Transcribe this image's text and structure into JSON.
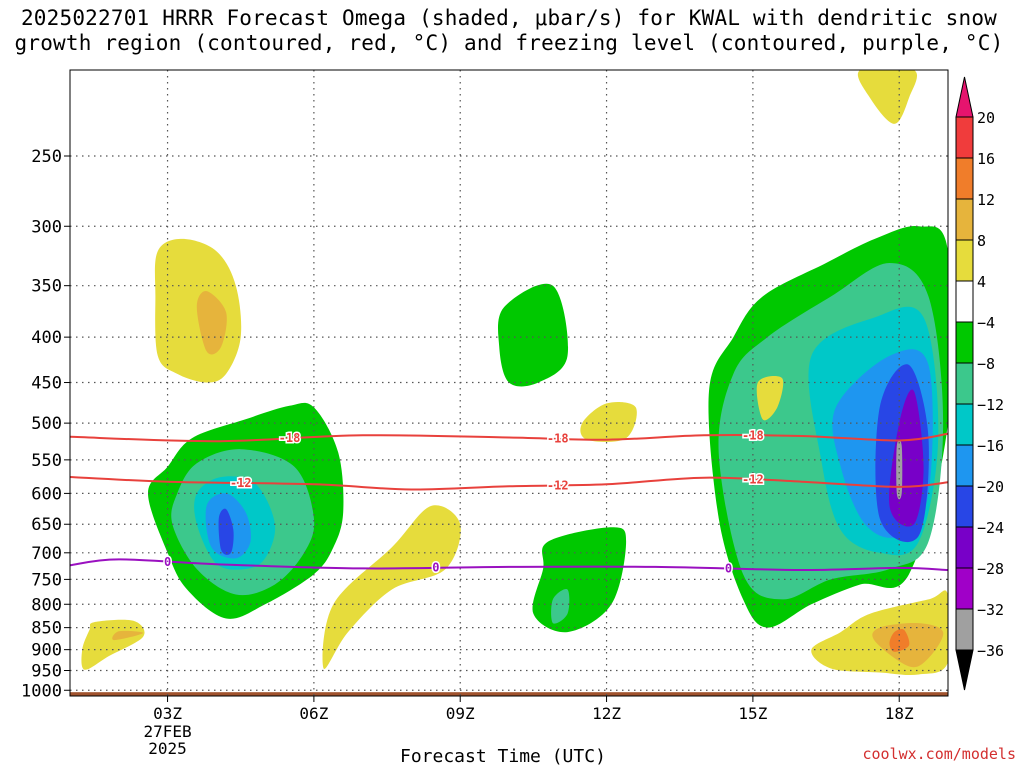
{
  "chart_data": {
    "type": "heatmap",
    "title_line1": "2025022701 HRRR Forecast Omega (shaded, μbar/s) for KWAL with dendritic snow",
    "title_line2": "growth region (contoured, red, °C) and freezing level (contoured, purple, °C)",
    "xlabel": "Forecast Time (UTC)",
    "credit": "coolwx.com/models",
    "x_ticks": [
      "03Z",
      "06Z",
      "09Z",
      "12Z",
      "15Z",
      "18Z"
    ],
    "x_tick_hours": [
      3,
      6,
      9,
      12,
      15,
      18
    ],
    "x_range_hours": [
      1,
      19
    ],
    "date_label": [
      "27FEB",
      "2025"
    ],
    "y_ticks": [
      250,
      300,
      350,
      400,
      450,
      500,
      550,
      600,
      650,
      700,
      750,
      800,
      850,
      900,
      950,
      1000
    ],
    "y_range_hpa": [
      1015,
      200
    ],
    "grid": true,
    "colorbar": {
      "labels": [
        "20",
        "16",
        "12",
        "8",
        "4",
        "−4",
        "−8",
        "−12",
        "−16",
        "−20",
        "−24",
        "−28",
        "−32",
        "−36"
      ],
      "colors": [
        "#f03c3c",
        "#f07d2a",
        "#e6b43c",
        "#e6dc3c",
        "#ffffff",
        "#00c800",
        "#3cc88c",
        "#00c8c8",
        "#1e96f0",
        "#2846e6",
        "#7800c8",
        "#a000c8",
        "#a0a0a0"
      ],
      "top_arrow_color": "#e6146e",
      "bottom_arrow_color": "#000000"
    },
    "contours": [
      {
        "name": "dendritic snow growth (-18°C)",
        "label": "-18",
        "color": "#e8413c",
        "x": [
          1,
          4,
          7,
          10,
          12,
          14,
          16,
          18,
          19
        ],
        "y": [
          518,
          524,
          516,
          519,
          522,
          516,
          517,
          523,
          514
        ]
      },
      {
        "name": "dendritic snow growth (-12°C)",
        "label": "-12",
        "color": "#e8413c",
        "x": [
          1,
          3,
          6,
          8,
          10,
          12,
          14,
          16,
          18,
          19
        ],
        "y": [
          575,
          582,
          586,
          594,
          589,
          586,
          576,
          582,
          590,
          583
        ]
      },
      {
        "name": "freezing level (0°C)",
        "label": "0",
        "color": "#9a10c0",
        "x": [
          1,
          2,
          4,
          7,
          10,
          13,
          16,
          18,
          19
        ],
        "y": [
          723,
          712,
          721,
          729,
          726,
          726,
          732,
          728,
          732
        ]
      }
    ],
    "omega_regions": [
      {
        "level": 4,
        "color": "#e6dc3c",
        "hours": [
          1.4,
          1.5,
          2.3,
          2.5,
          1.8,
          1.3,
          1.25
        ],
        "hpa": [
          855,
          838,
          835,
          870,
          915,
          948,
          900
        ]
      },
      {
        "level": 8,
        "color": "#e6b43c",
        "hours": [
          2.0,
          2.5,
          1.9
        ],
        "hpa": [
          858,
          862,
          878
        ]
      },
      {
        "level": 4,
        "color": "#e6dc3c",
        "hours": [
          2.8,
          3.3,
          4.0,
          4.4,
          4.5,
          4.2,
          3.8,
          3.2,
          2.8,
          2.75
        ],
        "hpa": [
          320,
          310,
          320,
          350,
          400,
          440,
          450,
          440,
          420,
          360
        ]
      },
      {
        "level": 8,
        "color": "#e6b43c",
        "hours": [
          3.6,
          3.8,
          4.2,
          4.1,
          3.8
        ],
        "hpa": [
          370,
          355,
          375,
          410,
          415
        ]
      },
      {
        "level": -4,
        "color": "#00c800",
        "hours": [
          3.0,
          3.5,
          4.6,
          5.5,
          6.0,
          6.5,
          6.6,
          6.4,
          6.0,
          5.0,
          4.2,
          3.4,
          3.0,
          2.6
        ],
        "hpa": [
          560,
          520,
          495,
          478,
          480,
          540,
          630,
          690,
          740,
          800,
          830,
          770,
          700,
          600
        ]
      },
      {
        "level": -8,
        "color": "#3cc88c",
        "hours": [
          3.2,
          3.6,
          4.5,
          5.6,
          6.0,
          5.8,
          5.2,
          4.4,
          3.6,
          3.1
        ],
        "hpa": [
          600,
          555,
          535,
          560,
          640,
          700,
          760,
          780,
          730,
          650
        ]
      },
      {
        "level": -12,
        "color": "#00c8c8",
        "hours": [
          3.6,
          4.1,
          4.8,
          5.2,
          5.0,
          4.6,
          4.0,
          3.6
        ],
        "hpa": [
          600,
          575,
          585,
          650,
          710,
          730,
          720,
          650
        ]
      },
      {
        "level": -16,
        "color": "#1e96f0",
        "hours": [
          3.8,
          4.2,
          4.6,
          4.7,
          4.4,
          3.9
        ],
        "hpa": [
          620,
          600,
          630,
          680,
          710,
          690
        ]
      },
      {
        "level": -20,
        "color": "#2846e6",
        "hours": [
          4.05,
          4.2,
          4.35,
          4.3,
          4.1
        ],
        "hpa": [
          640,
          625,
          660,
          700,
          695
        ]
      },
      {
        "level": 4,
        "color": "#e6dc3c",
        "hours": [
          6.4,
          7.6,
          8.4,
          9.0,
          8.7,
          7.6,
          6.7,
          6.2
        ],
        "hpa": [
          800,
          690,
          620,
          650,
          730,
          770,
          860,
          945
        ]
      },
      {
        "level": -4,
        "color": "#00c800",
        "hours": [
          9.9,
          10.9,
          11.2,
          10.6,
          10.0,
          9.8
        ],
        "hpa": [
          370,
          350,
          420,
          450,
          450,
          410
        ]
      },
      {
        "level": 4,
        "color": "#e6dc3c",
        "hours": [
          12.0,
          12.6,
          12.4,
          11.6,
          11.5
        ],
        "hpa": [
          475,
          480,
          520,
          522,
          500
        ]
      },
      {
        "level": -4,
        "color": "#00c800",
        "hours": [
          10.8,
          12.1,
          12.4,
          12.1,
          11.2,
          10.5,
          10.7
        ],
        "hpa": [
          680,
          655,
          680,
          800,
          860,
          820,
          730
        ]
      },
      {
        "level": -8,
        "color": "#3cc88c",
        "hours": [
          10.9,
          11.2,
          11.2,
          10.9
        ],
        "hpa": [
          790,
          770,
          820,
          840
        ]
      },
      {
        "level": -4,
        "color": "#00c800",
        "hours": [
          15.2,
          16.5,
          17.5,
          18.4,
          19.0,
          19.0,
          18.2,
          17.2,
          16.2,
          15.3,
          14.8,
          14.3,
          14.1,
          14.6
        ],
        "hpa": [
          360,
          330,
          310,
          300,
          320,
          500,
          740,
          760,
          800,
          850,
          790,
          640,
          460,
          400
        ]
      },
      {
        "level": -8,
        "color": "#3cc88c",
        "hours": [
          15.3,
          16.6,
          17.8,
          18.6,
          18.9,
          18.6,
          17.8,
          16.6,
          15.6,
          14.8,
          14.3,
          14.6
        ],
        "hpa": [
          400,
          360,
          330,
          360,
          500,
          680,
          730,
          750,
          790,
          740,
          540,
          440
        ]
      },
      {
        "level": -12,
        "color": "#00c8c8",
        "hours": [
          16.2,
          17.5,
          18.5,
          18.8,
          18.4,
          17.6,
          16.8,
          16.4
        ],
        "hpa": [
          420,
          380,
          380,
          520,
          680,
          700,
          660,
          550
        ]
      },
      {
        "level": -16,
        "color": "#1e96f0",
        "hours": [
          16.7,
          17.8,
          18.6,
          18.6,
          18.0,
          17.3,
          16.8
        ],
        "hpa": [
          480,
          420,
          430,
          600,
          670,
          650,
          560
        ]
      },
      {
        "level": -20,
        "color": "#2846e6",
        "hours": [
          17.6,
          18.2,
          18.6,
          18.4,
          17.6
        ],
        "hpa": [
          480,
          430,
          520,
          670,
          640
        ]
      },
      {
        "level": -24,
        "color": "#7800c8",
        "hours": [
          18.0,
          18.3,
          18.5,
          18.3,
          17.8
        ],
        "hpa": [
          500,
          460,
          560,
          650,
          620
        ]
      },
      {
        "level": -32,
        "color": "#a0a0a0",
        "hours": [
          17.95,
          18.05,
          18.05,
          17.95
        ],
        "hpa": [
          530,
          530,
          600,
          600
        ]
      },
      {
        "level": 4,
        "color": "#e6dc3c",
        "hours": [
          17.4,
          18.6,
          19.0,
          19.0,
          18.4,
          17.6,
          16.6,
          16.2,
          16.8
        ],
        "hpa": [
          820,
          790,
          780,
          930,
          960,
          955,
          945,
          900,
          860
        ]
      },
      {
        "level": 8,
        "color": "#e6b43c",
        "hours": [
          17.6,
          18.4,
          18.9,
          18.6,
          18.2,
          17.5
        ],
        "hpa": [
          850,
          840,
          860,
          920,
          940,
          880
        ]
      },
      {
        "level": 12,
        "color": "#f07d2a",
        "hours": [
          17.9,
          18.1,
          18.2,
          17.9,
          17.8
        ],
        "hpa": [
          860,
          855,
          890,
          905,
          885
        ]
      },
      {
        "level": 4,
        "color": "#e6dc3c",
        "hours": [
          17.2,
          18.3,
          18.2,
          17.9,
          17.4
        ],
        "hpa": [
          200,
          200,
          215,
          230,
          215
        ]
      },
      {
        "level": 4,
        "color": "#e6dc3c",
        "hours": [
          15.1,
          15.6,
          15.5,
          15.2
        ],
        "hpa": [
          450,
          445,
          480,
          495
        ]
      }
    ],
    "terrain": {
      "color": "#a0522d",
      "hpa_top": 1005
    }
  }
}
